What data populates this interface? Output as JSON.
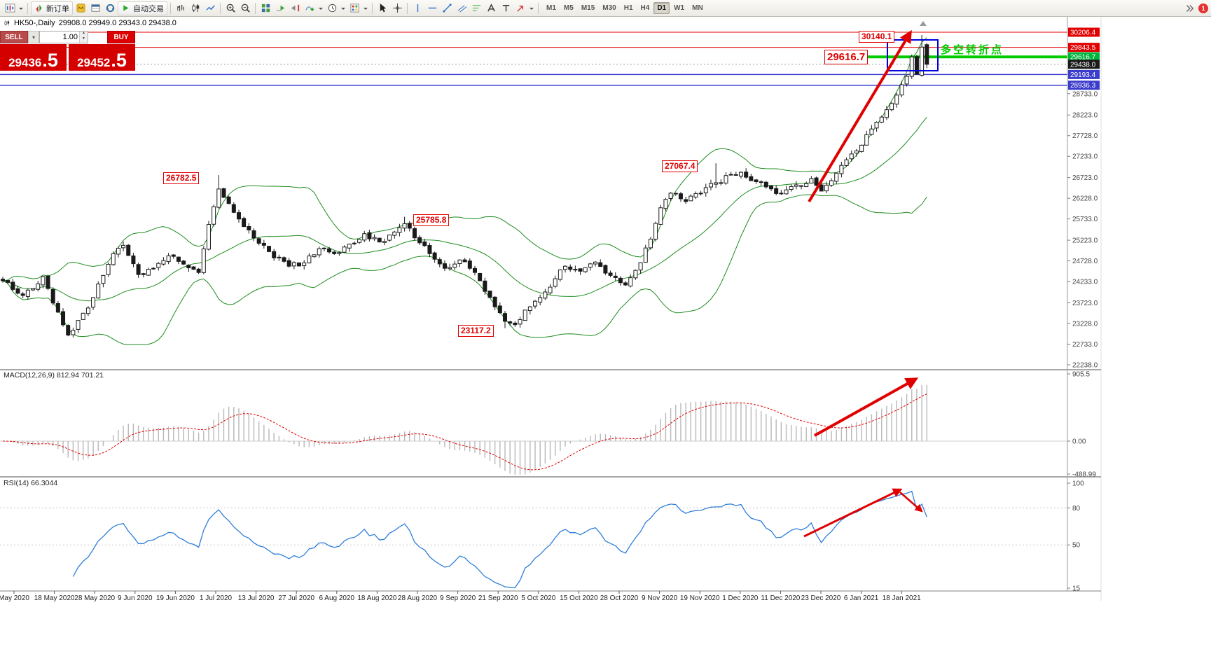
{
  "toolbar": {
    "new_order_label": "新订单",
    "auto_trading_label": "自动交易",
    "timeframes": [
      "M1",
      "M5",
      "M15",
      "M30",
      "H1",
      "H4",
      "D1",
      "W1",
      "MN"
    ],
    "active_timeframe": "D1",
    "notification_badge": "1",
    "icons": [
      "new-chart",
      "chart-dropdown",
      "new-order",
      "metaeditor",
      "terminal",
      "support",
      "auto-trading",
      "bar-chart",
      "candlestick-chart",
      "line-chart",
      "zoom-in",
      "zoom-out",
      "tile-windows",
      "auto-scroll",
      "chart-shift",
      "indicators",
      "periods",
      "templates",
      "cursor",
      "crosshair",
      "vertical-line",
      "horizontal-line",
      "trendline",
      "equidistant-channel",
      "fibonacci",
      "text",
      "text-label",
      "arrows-tool",
      "toolbar-overflow"
    ]
  },
  "chart_header": {
    "symbol_title": "HK50-,Daily",
    "ohlc_text": "29908.0 29949.0 29343.0 29438.0"
  },
  "trade_panel": {
    "sell_label": "SELL",
    "buy_label": "BUY",
    "volume": "1.00",
    "sell_price_main": "29436",
    "sell_price_pips": ".5",
    "buy_price_main": "29452",
    "buy_price_pips": ".5"
  },
  "annotations": {
    "jul_high": "26782.5",
    "aug_high": "25785.8",
    "sep_low": "23117.2",
    "nov_high": "27067.4",
    "jan_high": "30140.1",
    "turning_level": "29616.7",
    "turning_point_text": "多空转折点"
  },
  "macd_panel": {
    "label": "MACD(12,26,9) 812.94 701.21",
    "axis_labels": [
      "905.5",
      "0.00",
      "-488.99"
    ],
    "axis_values": [
      905.5,
      0,
      -488.99
    ]
  },
  "rsi_panel": {
    "label": "RSI(14) 66.3044",
    "axis_labels": [
      "100",
      "80",
      "50",
      "15"
    ],
    "axis_values": [
      100,
      80,
      50,
      15
    ]
  },
  "time_axis": [
    "May 2020",
    "18 May 2020",
    "28 May 2020",
    "9 Jun 2020",
    "19 Jun 2020",
    "1 Jul 2020",
    "13 Jul 2020",
    "27 Jul 2020",
    "6 Aug 2020",
    "18 Aug 2020",
    "28 Aug 2020",
    "9 Sep 2020",
    "21 Sep 2020",
    "5 Oct 2020",
    "15 Oct 2020",
    "28 Oct 2020",
    "9 Nov 2020",
    "19 Nov 2020",
    "1 Dec 2020",
    "11 Dec 2020",
    "23 Dec 2020",
    "6 Jan 2021",
    "18 Jan 2021"
  ],
  "chart_data": {
    "type": "candlestick",
    "symbol": "HK50",
    "timeframe": "Daily",
    "ohlc_today": {
      "open": 29908.0,
      "high": 29949.0,
      "low": 29343.0,
      "close": 29438.0
    },
    "indicators": {
      "bands": "Bollinger Bands(20,2)",
      "macd": "MACD(12,26,9)",
      "rsi": "RSI(14)"
    },
    "macd_values": {
      "main": 812.94,
      "signal": 701.21
    },
    "rsi_value": 66.3044,
    "price_axis_top": 30206.4,
    "price_axis_bottom": 22238.0,
    "scale_values": [
      28733.0,
      28223.0,
      27728.0,
      27233.0,
      26723.0,
      26228.0,
      25733.0,
      25223.0,
      24728.0,
      24233.0,
      23723.0,
      23228.0,
      22733.0,
      22238.0
    ],
    "levels": [
      {
        "price": 30206.4,
        "color": "#e00000",
        "width": 1,
        "style": "solid",
        "tag": "#e00000"
      },
      {
        "price": 29843.5,
        "color": "#e00000",
        "width": 1,
        "style": "solid",
        "tag": "#e00000"
      },
      {
        "price": 29616.7,
        "color": "#00cc00",
        "width": 4,
        "style": "segment",
        "tag": "#00b43c"
      },
      {
        "price": 29438.0,
        "color": "#999999",
        "width": 1,
        "style": "dash",
        "tag": "#1a1a1a"
      },
      {
        "price": 29193.4,
        "color": "#3c3ccc",
        "width": 1.5,
        "style": "solid",
        "tag": "#3c3ccc"
      },
      {
        "price": 28936.3,
        "color": "#3c3ccc",
        "width": 1.5,
        "style": "solid",
        "tag": "#3c3ccc"
      }
    ],
    "candle_count": 185,
    "close_keyframes": [
      [
        0,
        24250
      ],
      [
        4,
        23900
      ],
      [
        8,
        24350
      ],
      [
        11,
        23500
      ],
      [
        13,
        22950
      ],
      [
        15,
        23300
      ],
      [
        18,
        23850
      ],
      [
        22,
        24900
      ],
      [
        24,
        25100
      ],
      [
        27,
        24400
      ],
      [
        30,
        24550
      ],
      [
        33,
        24850
      ],
      [
        36,
        24650
      ],
      [
        39,
        24450
      ],
      [
        41,
        25600
      ],
      [
        43,
        26450
      ],
      [
        45,
        26100
      ],
      [
        48,
        25550
      ],
      [
        51,
        25150
      ],
      [
        54,
        24800
      ],
      [
        57,
        24600
      ],
      [
        60,
        24680
      ],
      [
        63,
        25020
      ],
      [
        66,
        24900
      ],
      [
        69,
        25130
      ],
      [
        72,
        25380
      ],
      [
        75,
        25180
      ],
      [
        78,
        25420
      ],
      [
        80,
        25620
      ],
      [
        82,
        25280
      ],
      [
        85,
        24900
      ],
      [
        88,
        24550
      ],
      [
        91,
        24750
      ],
      [
        94,
        24450
      ],
      [
        97,
        23850
      ],
      [
        100,
        23280
      ],
      [
        102,
        23200
      ],
      [
        104,
        23550
      ],
      [
        107,
        23850
      ],
      [
        110,
        24300
      ],
      [
        112,
        24600
      ],
      [
        115,
        24480
      ],
      [
        118,
        24700
      ],
      [
        121,
        24380
      ],
      [
        124,
        24150
      ],
      [
        126,
        24500
      ],
      [
        129,
        25250
      ],
      [
        131,
        26000
      ],
      [
        133,
        26350
      ],
      [
        136,
        26150
      ],
      [
        139,
        26350
      ],
      [
        142,
        26600
      ],
      [
        145,
        26800
      ],
      [
        147,
        26850
      ],
      [
        149,
        26650
      ],
      [
        152,
        26500
      ],
      [
        155,
        26350
      ],
      [
        158,
        26550
      ],
      [
        161,
        26700
      ],
      [
        163,
        26400
      ],
      [
        165,
        26650
      ],
      [
        168,
        27150
      ],
      [
        171,
        27500
      ],
      [
        174,
        28050
      ],
      [
        176,
        28350
      ],
      [
        178,
        28700
      ],
      [
        180,
        29150
      ],
      [
        181,
        29616.7
      ],
      [
        182,
        29200
      ],
      [
        183,
        29850
      ],
      [
        184,
        29438
      ]
    ],
    "special_candles": [
      {
        "i": 43,
        "high": 26782.5
      },
      {
        "i": 80,
        "high": 25785.8
      },
      {
        "i": 100,
        "low": 23117.2
      },
      {
        "i": 142,
        "high": 27067.4
      },
      {
        "i": 183,
        "high": 30140.1
      },
      {
        "i": 184,
        "open": 29908.0,
        "high": 29949.0,
        "low": 29343.0,
        "close": 29438.0
      }
    ]
  }
}
